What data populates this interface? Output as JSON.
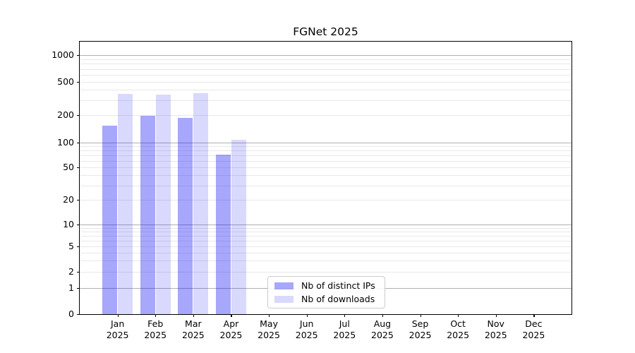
{
  "title": "FGNet 2025",
  "colors": {
    "bar_distinct_ips": "rgba(10,10,245,0.36)",
    "bar_downloads": "rgba(10,10,245,0.155)",
    "major_gridline": "#b0b0b0",
    "minor_gridline": "#e8e8e8",
    "axis_frame": "#000000",
    "legend_border": "#cccccc",
    "text": "#000000"
  },
  "legend": {
    "items": [
      {
        "label": "Nb of distinct IPs",
        "color_key": "bar_distinct_ips"
      },
      {
        "label": "Nb of downloads",
        "color_key": "bar_downloads"
      }
    ]
  },
  "y_axis": {
    "tick_labels": [
      "1000",
      "500",
      "200",
      "100",
      "50",
      "20",
      "10",
      "5",
      "2",
      "1",
      "0"
    ],
    "tick_values": [
      1000,
      500,
      200,
      100,
      50,
      20,
      10,
      5,
      2,
      1,
      0
    ]
  },
  "x_axis": {
    "year": "2025",
    "months": [
      "Jan",
      "Feb",
      "Mar",
      "Apr",
      "May",
      "Jun",
      "Jul",
      "Aug",
      "Sep",
      "Oct",
      "Nov",
      "Dec"
    ]
  },
  "chart_data": {
    "type": "bar",
    "title": "FGNet 2025",
    "categories": [
      "Jan 2025",
      "Feb 2025",
      "Mar 2025",
      "Apr 2025",
      "May 2025",
      "Jun 2025",
      "Jul 2025",
      "Aug 2025",
      "Sep 2025",
      "Oct 2025",
      "Nov 2025",
      "Dec 2025"
    ],
    "series": [
      {
        "name": "Nb of distinct IPs",
        "values": [
          153,
          195,
          185,
          71,
          0,
          0,
          0,
          0,
          0,
          0,
          0,
          0
        ]
      },
      {
        "name": "Nb of downloads",
        "values": [
          360,
          350,
          368,
          108,
          0,
          0,
          0,
          0,
          0,
          0,
          0,
          0
        ]
      }
    ],
    "yscale": "symlog",
    "yticks": [
      0,
      1,
      2,
      5,
      10,
      20,
      50,
      100,
      200,
      500,
      1000
    ],
    "ylim": [
      0,
      1500
    ],
    "grid": "horizontal",
    "legend_position": "lower center inside axes"
  }
}
